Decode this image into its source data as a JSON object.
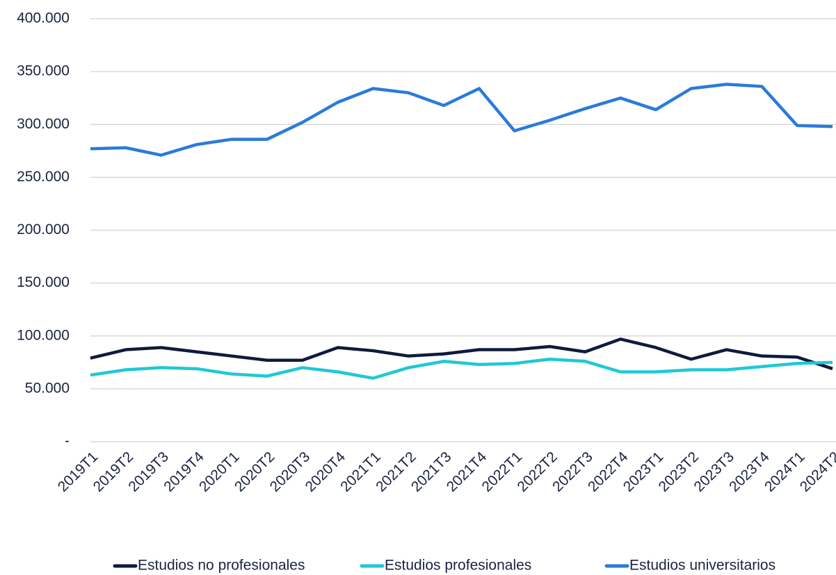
{
  "chart_data": {
    "type": "line",
    "categories": [
      "2019T1",
      "2019T2",
      "2019T3",
      "2019T4",
      "2020T1",
      "2020T2",
      "2020T3",
      "2020T4",
      "2021T1",
      "2021T2",
      "2021T3",
      "2021T4",
      "2022T1",
      "2022T2",
      "2022T3",
      "2022T4",
      "2023T1",
      "2023T2",
      "2023T3",
      "2023T4",
      "2024T1",
      "2024T2"
    ],
    "series": [
      {
        "name": "Estudios no profesionales",
        "color": "#0f1b3d",
        "values": [
          79000,
          87000,
          89000,
          85000,
          81000,
          77000,
          77000,
          89000,
          86000,
          81000,
          83000,
          87000,
          87000,
          90000,
          85000,
          97000,
          89000,
          78000,
          87000,
          81000,
          80000,
          69000
        ]
      },
      {
        "name": "Estudios profesionales",
        "color": "#1fc8d6",
        "values": [
          63000,
          68000,
          70000,
          69000,
          64000,
          62000,
          70000,
          66000,
          60000,
          70000,
          76000,
          73000,
          74000,
          78000,
          76000,
          66000,
          66000,
          68000,
          68000,
          71000,
          74000,
          75000
        ]
      },
      {
        "name": "Estudios universitarios",
        "color": "#2a7bdb",
        "values": [
          277000,
          278000,
          271000,
          281000,
          286000,
          286000,
          302000,
          321000,
          334000,
          330000,
          318000,
          334000,
          294000,
          304000,
          315000,
          325000,
          314000,
          334000,
          338000,
          336000,
          299000,
          298000
        ]
      }
    ],
    "ylim": [
      0,
      400000
    ],
    "yticks": [
      {
        "value": 0,
        "label": "-"
      },
      {
        "value": 50000,
        "label": "50.000"
      },
      {
        "value": 100000,
        "label": "100.000"
      },
      {
        "value": 150000,
        "label": "150.000"
      },
      {
        "value": 200000,
        "label": "200.000"
      },
      {
        "value": 250000,
        "label": "250.000"
      },
      {
        "value": 300000,
        "label": "300.000"
      },
      {
        "value": 350000,
        "label": "350.000"
      },
      {
        "value": 400000,
        "label": "400.000"
      }
    ],
    "grid": true,
    "legend": "bottom"
  }
}
